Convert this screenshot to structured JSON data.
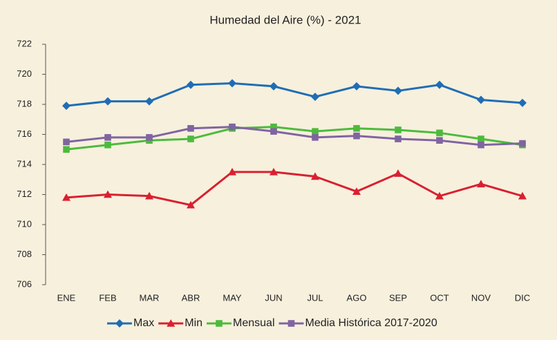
{
  "chart_data": {
    "type": "line",
    "title": "Humedad del Aire (%) - 2021",
    "categories": [
      "ENE",
      "FEB",
      "MAR",
      "ABR",
      "MAY",
      "JUN",
      "JUL",
      "AGO",
      "SEP",
      "OCT",
      "NOV",
      "DIC"
    ],
    "series": [
      {
        "name": "Max",
        "color": "#1f6db5",
        "marker": "diamond",
        "values": [
          717.9,
          718.2,
          718.2,
          719.3,
          719.4,
          719.2,
          718.5,
          719.2,
          718.9,
          719.3,
          718.3,
          718.1
        ]
      },
      {
        "name": "Min",
        "color": "#d92030",
        "marker": "triangle",
        "values": [
          711.8,
          712.0,
          711.9,
          711.3,
          713.5,
          713.5,
          713.2,
          712.2,
          713.4,
          711.9,
          712.7,
          711.9
        ]
      },
      {
        "name": "Mensual",
        "color": "#4cbb3d",
        "marker": "square",
        "values": [
          715.0,
          715.3,
          715.6,
          715.7,
          716.4,
          716.5,
          716.2,
          716.4,
          716.3,
          716.1,
          715.7,
          715.3
        ]
      },
      {
        "name": "Media Histórica 2017-2020",
        "color": "#8064a2",
        "marker": "square",
        "values": [
          715.5,
          715.8,
          715.8,
          716.4,
          716.5,
          716.2,
          715.8,
          715.9,
          715.7,
          715.6,
          715.3,
          715.4
        ]
      }
    ],
    "ylim": [
      706,
      722
    ],
    "yticks": [
      706,
      708,
      710,
      712,
      714,
      716,
      718,
      720,
      722
    ],
    "grid": false,
    "legend": "bottom"
  }
}
